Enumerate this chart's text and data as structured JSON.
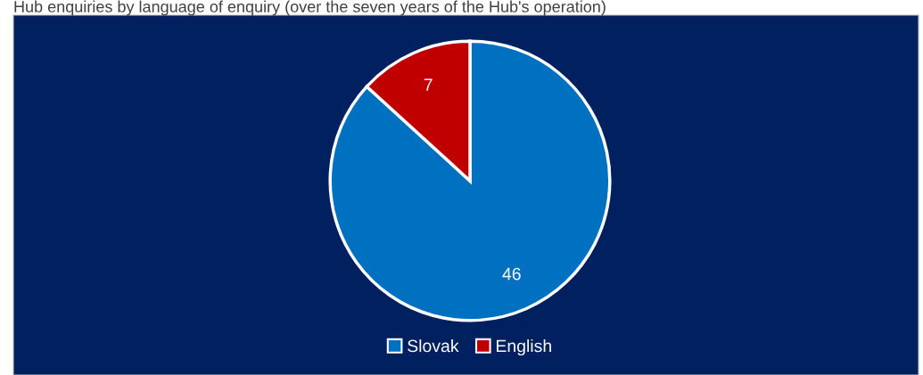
{
  "chart_data": {
    "type": "pie",
    "title": "Hub enquiries by language of enquiry (over the seven years of the Hub's operation)",
    "categories": [
      "Slovak",
      "English"
    ],
    "values": [
      46,
      7
    ],
    "colors": [
      "#0070c0",
      "#c00000"
    ],
    "data_labels": true,
    "legend": "bottom"
  }
}
